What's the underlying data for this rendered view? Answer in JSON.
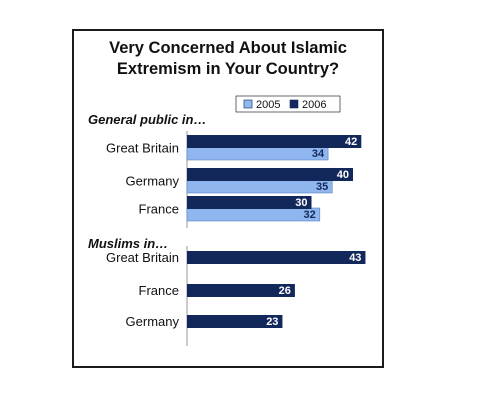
{
  "chart_data": {
    "type": "bar",
    "orientation": "horizontal",
    "title_lines": [
      "Very Concerned About Islamic",
      "Extremism in Your Country?"
    ],
    "legend": {
      "placement": "top-right",
      "items": [
        "2005",
        "2006"
      ]
    },
    "colors": {
      "2005": "#8fb6ee",
      "2006": "#13285a"
    },
    "xlim": [
      0,
      50
    ],
    "groups": [
      {
        "label": "General public in…",
        "categories": [
          "Great Britain",
          "Germany",
          "France"
        ],
        "series": [
          {
            "name": "2006",
            "values": [
              42,
              40,
              30
            ]
          },
          {
            "name": "2005",
            "values": [
              34,
              35,
              32
            ]
          }
        ]
      },
      {
        "label": "Muslims in…",
        "categories": [
          "Great Britain",
          "France",
          "Germany"
        ],
        "series": [
          {
            "name": "2006",
            "values": [
              43,
              26,
              23
            ]
          }
        ]
      }
    ]
  }
}
